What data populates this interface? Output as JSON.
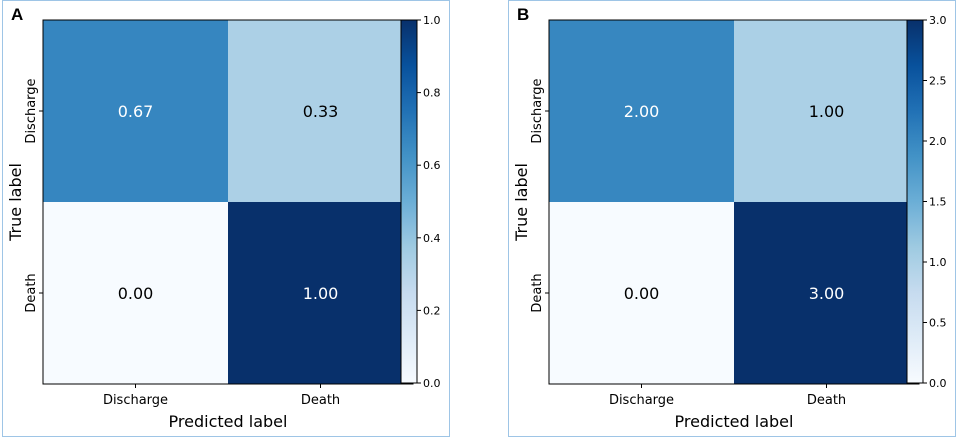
{
  "chart_data": [
    {
      "panel": "A",
      "type": "heatmap",
      "xlabel": "Predicted label",
      "ylabel": "True label",
      "x_categories": [
        "Discharge",
        "Death"
      ],
      "y_categories": [
        "Discharge",
        "Death"
      ],
      "values": [
        [
          0.67,
          0.33
        ],
        [
          0.0,
          1.0
        ]
      ],
      "value_labels": [
        [
          "0.67",
          "0.33"
        ],
        [
          "0.00",
          "1.00"
        ]
      ],
      "colorbar": {
        "range": [
          0.0,
          1.0
        ],
        "ticks": [
          "0.0",
          "0.2",
          "0.4",
          "0.6",
          "0.8",
          "1.0"
        ],
        "colormap": "Blues"
      }
    },
    {
      "panel": "B",
      "type": "heatmap",
      "xlabel": "Predicted label",
      "ylabel": "True label",
      "x_categories": [
        "Discharge",
        "Death"
      ],
      "y_categories": [
        "Discharge",
        "Death"
      ],
      "values": [
        [
          2.0,
          1.0
        ],
        [
          0.0,
          3.0
        ]
      ],
      "value_labels": [
        [
          "2.00",
          "1.00"
        ],
        [
          "0.00",
          "3.00"
        ]
      ],
      "colorbar": {
        "range": [
          0.0,
          3.0
        ],
        "ticks": [
          "0.0",
          "0.5",
          "1.0",
          "1.5",
          "2.0",
          "2.5",
          "3.0"
        ],
        "colormap": "Blues"
      }
    }
  ],
  "colors": {
    "blues_scale": [
      "#f7fbff",
      "#deebf7",
      "#c6dbef",
      "#9ecae1",
      "#6baed6",
      "#4292c6",
      "#2171b5",
      "#08519c",
      "#08306b"
    ],
    "text_light": "#ffffff",
    "text_dark": "#000000",
    "panel_border": "#9ec5e6"
  }
}
